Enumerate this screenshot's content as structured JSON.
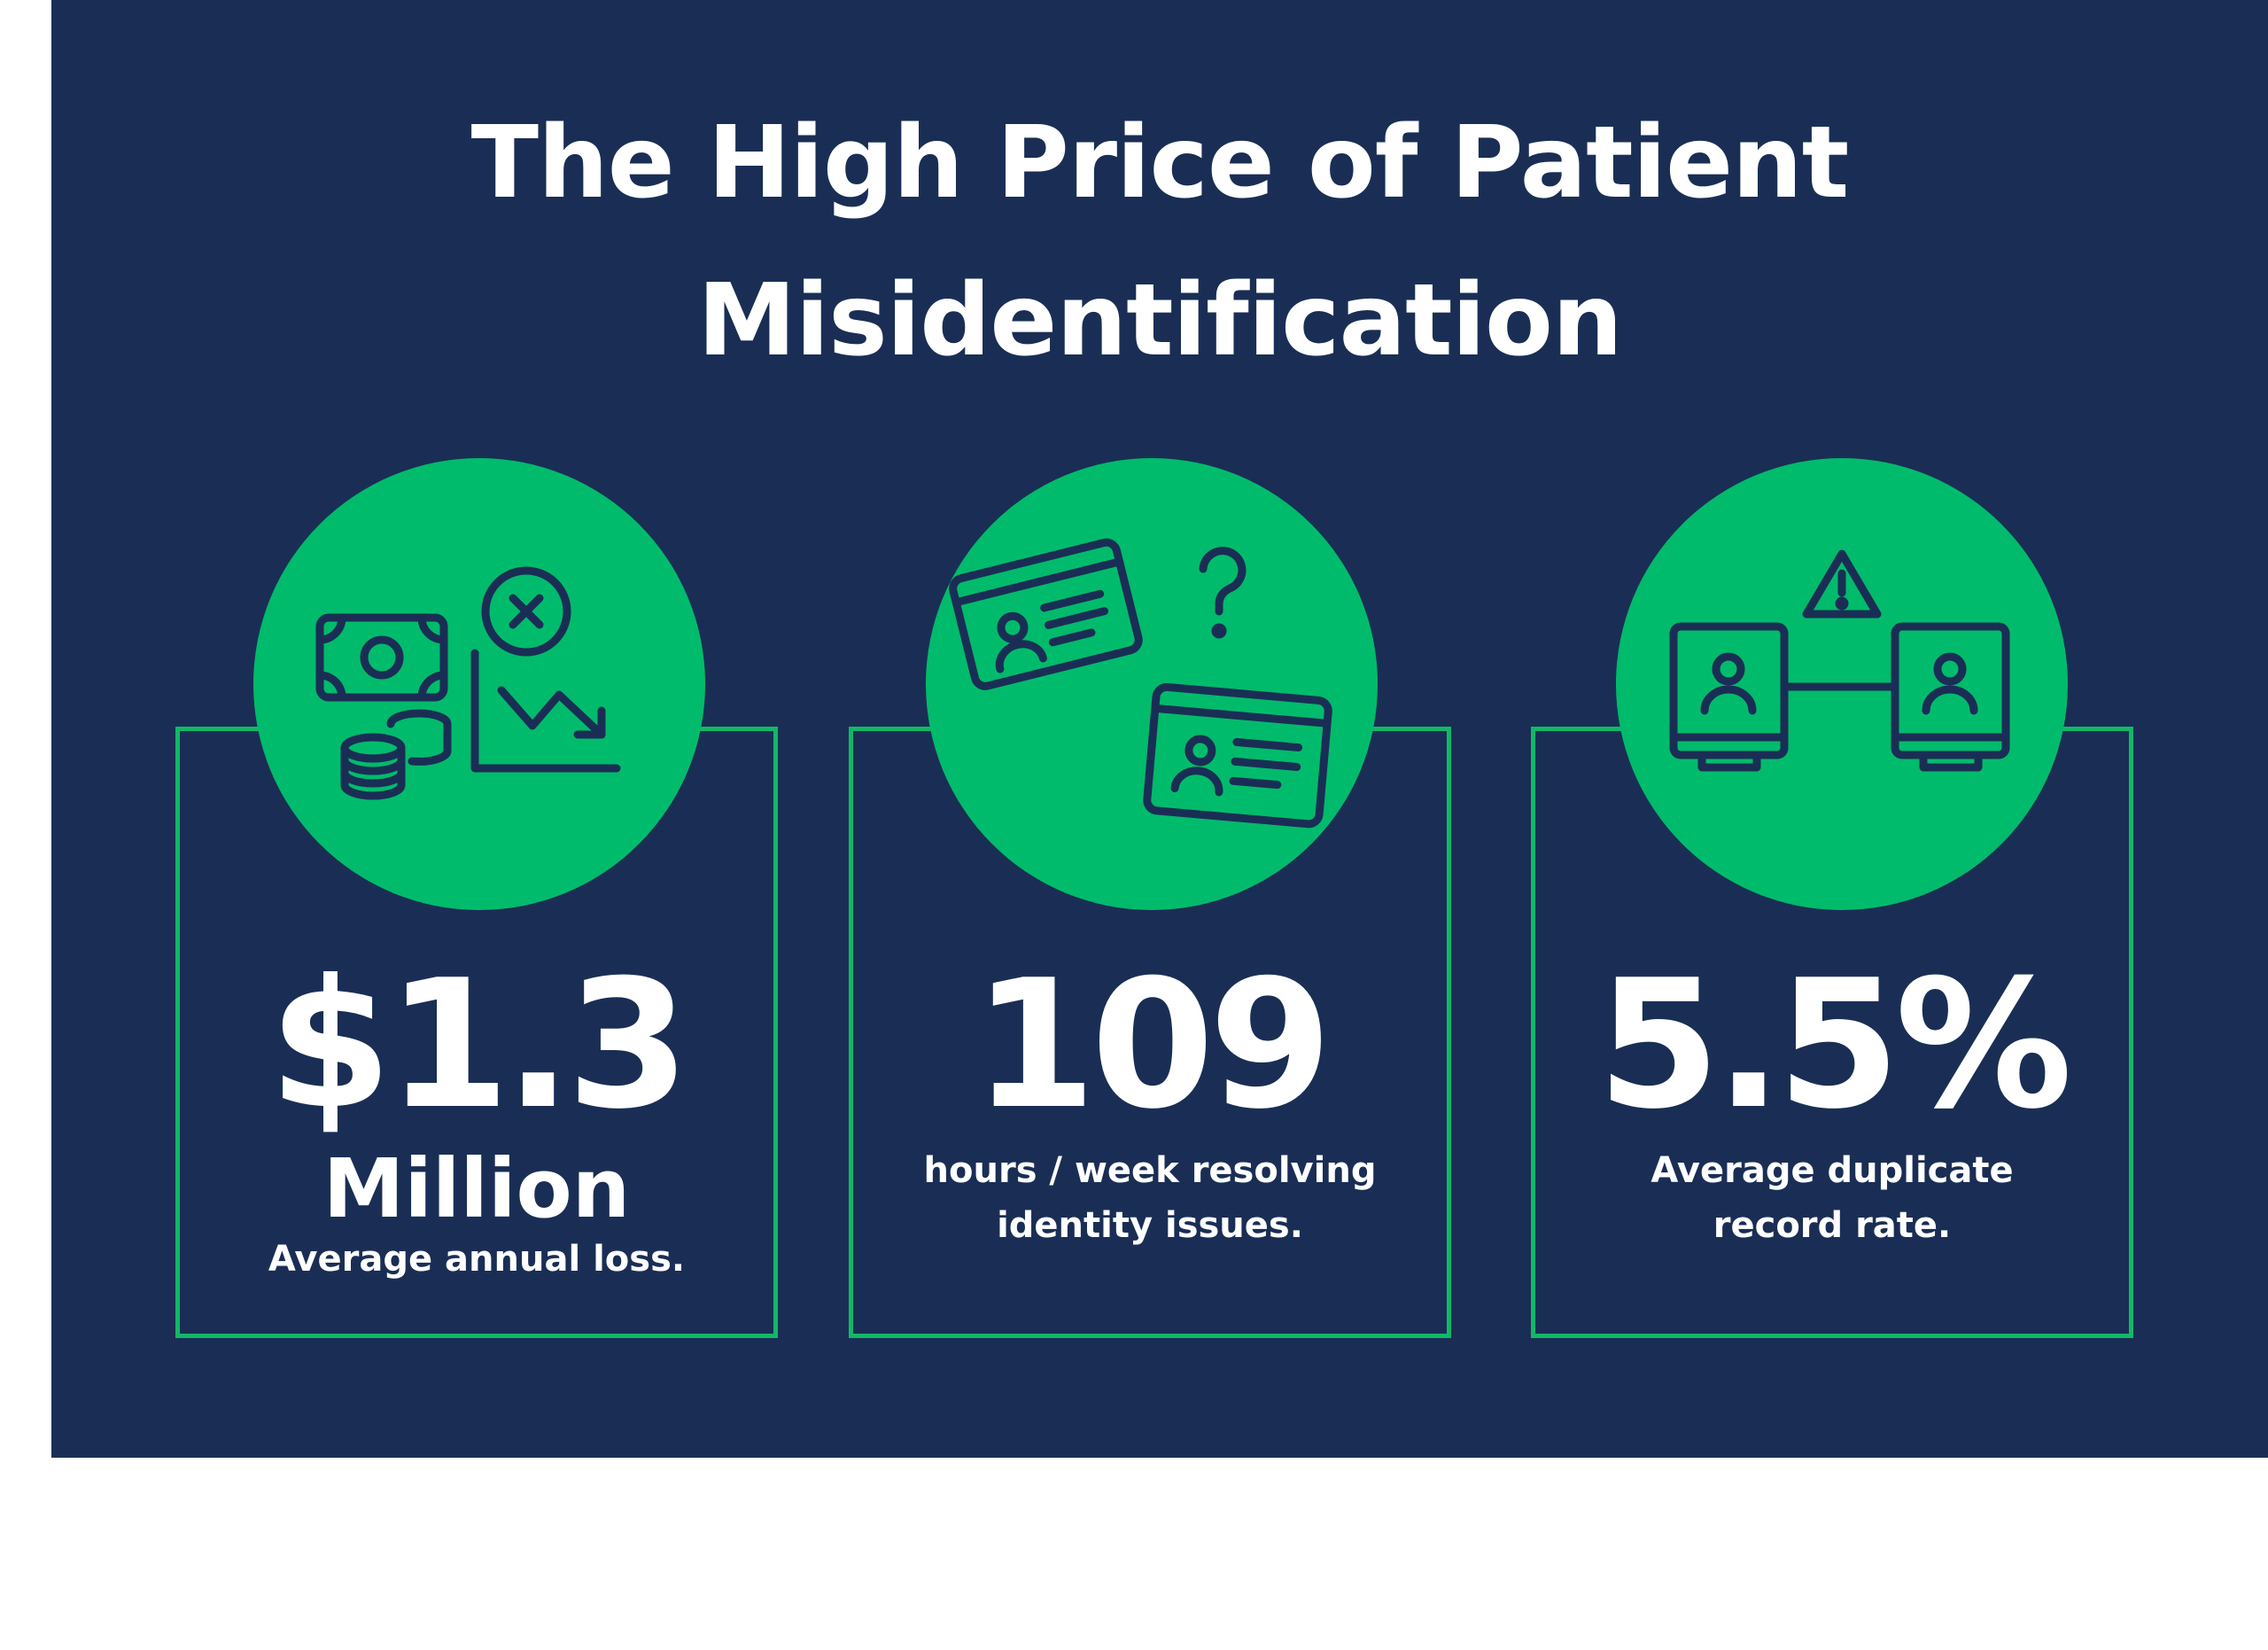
{
  "title": {
    "line1": "The High Price of Patient",
    "line2": "Misidentification"
  },
  "colors": {
    "background": "#1a2e55",
    "accent": "#00bb6b",
    "text": "#ffffff"
  },
  "stats": [
    {
      "icon": "money-loss-icon",
      "value": "$1.3",
      "unit": "Million",
      "caption": "Average annual loss."
    },
    {
      "icon": "id-cards-question-icon",
      "value": "109",
      "caption_line1": "hours / week resolving",
      "caption_line2": "identity issues."
    },
    {
      "icon": "duplicate-records-warning-icon",
      "value": "5.5%",
      "caption_line1": "Average duplicate",
      "caption_line2": "record rate."
    }
  ]
}
